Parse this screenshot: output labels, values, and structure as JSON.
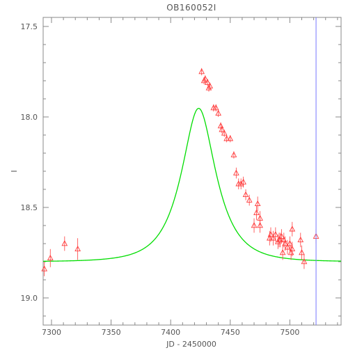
{
  "chart_data": {
    "type": "scatter",
    "title": "OB160052I",
    "xlabel": "JD - 2450000",
    "ylabel": "I",
    "xlim": [
      7293,
      7543
    ],
    "ylim": [
      19.15,
      17.45
    ],
    "y_inverted": true,
    "x_ticks": [
      7300,
      7350,
      7400,
      7450,
      7500
    ],
    "y_ticks": [
      17.5,
      18.0,
      18.5,
      19.0
    ],
    "y_tick_labels": [
      "17.5",
      "18.0",
      "18.5",
      "19.0"
    ],
    "grid": false,
    "legend": "none",
    "colors": {
      "points": "#ff3b3b",
      "model": "#00dd00",
      "vline": "#7777ff",
      "axes": "#888888"
    },
    "vertical_line_x": 7522,
    "model": {
      "type": "paczynski",
      "t0": 7423.5,
      "tE": 25,
      "u0": 0.5,
      "baseline": 18.8
    },
    "series": [
      {
        "x": [
          7294,
          7299,
          7311,
          7322,
          7426,
          7428,
          7429,
          7431,
          7432,
          7433,
          7436,
          7438,
          7440,
          7442,
          7443,
          7445,
          7447,
          7450,
          7453,
          7455,
          7457,
          7459,
          7461,
          7463,
          7466,
          7470,
          7472,
          7473,
          7475,
          7475,
          7483,
          7484,
          7486,
          7488,
          7490,
          7491,
          7492,
          7493,
          7494,
          7495,
          7496,
          7498,
          7500,
          7501,
          7502,
          7502,
          7509,
          7510,
          7512,
          7522
        ],
        "y": [
          18.84,
          18.78,
          18.7,
          18.73,
          17.75,
          17.8,
          17.79,
          17.81,
          17.84,
          17.83,
          17.95,
          17.95,
          17.98,
          18.05,
          18.07,
          18.09,
          18.12,
          18.12,
          18.21,
          18.31,
          18.37,
          18.37,
          18.36,
          18.43,
          18.46,
          18.6,
          18.53,
          18.48,
          18.56,
          18.6,
          18.67,
          18.65,
          18.67,
          18.65,
          18.69,
          18.68,
          18.68,
          18.66,
          18.75,
          18.68,
          18.7,
          18.72,
          18.7,
          18.75,
          18.73,
          18.62,
          18.68,
          18.75,
          18.8,
          18.66
        ],
        "err": [
          0.04,
          0.05,
          0.04,
          0.06,
          0.02,
          0.02,
          0.02,
          0.02,
          0.02,
          0.02,
          0.02,
          0.02,
          0.02,
          0.02,
          0.02,
          0.02,
          0.02,
          0.02,
          0.02,
          0.03,
          0.03,
          0.03,
          0.03,
          0.03,
          0.03,
          0.04,
          0.04,
          0.04,
          0.04,
          0.04,
          0.04,
          0.04,
          0.04,
          0.04,
          0.04,
          0.04,
          0.04,
          0.04,
          0.04,
          0.04,
          0.04,
          0.04,
          0.04,
          0.04,
          0.04,
          0.04,
          0.04,
          0.04,
          0.04,
          0.04
        ]
      }
    ]
  }
}
